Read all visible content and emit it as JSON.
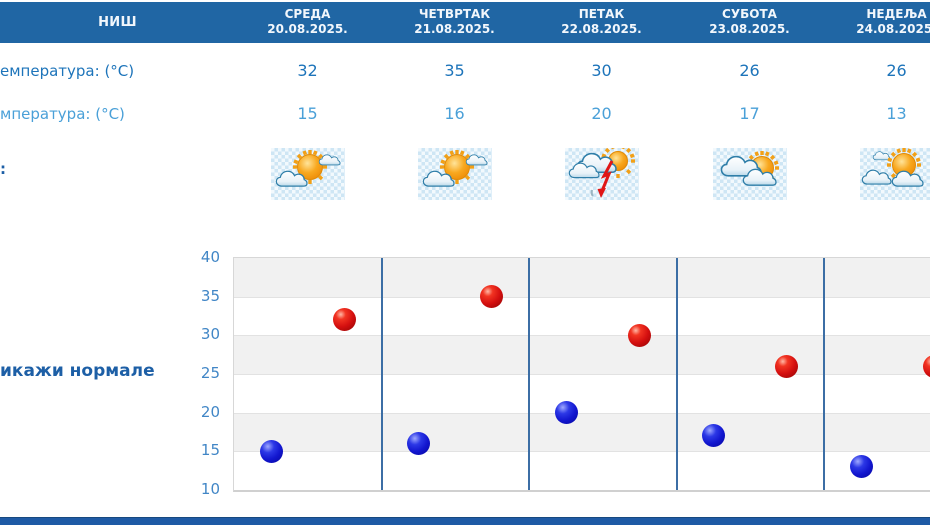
{
  "station": "НИШ",
  "days": [
    {
      "name": "СРЕДА",
      "date": "20.08.2025.",
      "max": "32",
      "min": "15",
      "icon": "partly-sunny"
    },
    {
      "name": "ЧЕТВРТАК",
      "date": "21.08.2025.",
      "max": "35",
      "min": "16",
      "icon": "partly-sunny"
    },
    {
      "name": "ПЕТАК",
      "date": "22.08.2025.",
      "max": "30",
      "min": "20",
      "icon": "thunderstorm"
    },
    {
      "name": "СУБОТА",
      "date": "23.08.2025.",
      "max": "26",
      "min": "17",
      "icon": "mostly-cloudy"
    },
    {
      "name": "НЕДЕЉА",
      "date": "24.08.2025.",
      "max": "26",
      "min": "13",
      "icon": "mostly-cloudy"
    }
  ],
  "row_labels": {
    "max_temp": "емпература: (°C)",
    "min_temp": "мпература: (°C)",
    "icons": ":"
  },
  "link_label": "икажи нормале",
  "colors": {
    "header_bg": "#2066a4",
    "footer_bg": "#1e5aa5",
    "max_text": "#1d74ba",
    "min_text": "#4aa0d8",
    "link_text": "#1d5fa6",
    "axis_text": "#4186c6",
    "band_gray": "#f1f1f1",
    "vline_blue": "#3c6ea5",
    "dot_max": "#d40f0f",
    "dot_min": "#1216cf"
  },
  "chart_data": {
    "type": "scatter",
    "categories": [
      "СРЕДА 20.08.2025.",
      "ЧЕТВРТАК 21.08.2025.",
      "ПЕТАК 22.08.2025.",
      "СУБОТА 23.08.2025.",
      "НЕДЕЉА 24.08.2025."
    ],
    "series": [
      {
        "name": "max",
        "color": "#d40f0f",
        "values": [
          32,
          35,
          30,
          26,
          26
        ]
      },
      {
        "name": "min",
        "color": "#1216cf",
        "values": [
          15,
          16,
          20,
          17,
          13
        ]
      }
    ],
    "title": "",
    "xlabel": "",
    "ylabel": "",
    "ylim": [
      10,
      40
    ],
    "yticks": [
      40,
      35,
      30,
      25,
      20,
      15,
      10
    ],
    "grid": "horizontal bands every 5, alternating gray/white",
    "legend": "none",
    "column_separators": true
  }
}
